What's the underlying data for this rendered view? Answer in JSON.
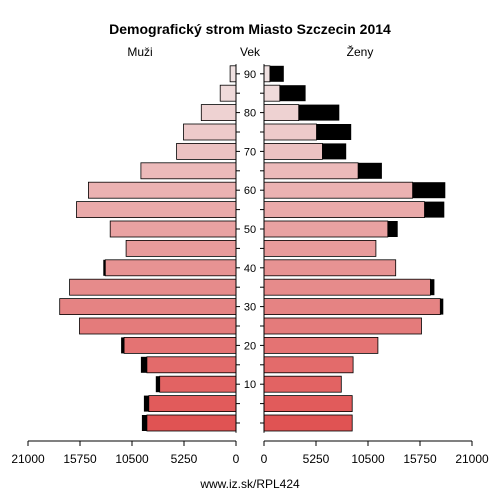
{
  "chart_data": {
    "type": "bar",
    "title": "Demografický strom Miasto Szczecin 2014",
    "left_label": "Muži",
    "center_label": "Vek",
    "right_label": "Ženy",
    "footer": "www.iz.sk/RPL424",
    "age_groups": [
      "0-4",
      "5-9",
      "10-14",
      "15-19",
      "20-24",
      "25-29",
      "30-34",
      "35-39",
      "40-44",
      "45-49",
      "50-54",
      "55-59",
      "60-64",
      "65-69",
      "70-74",
      "75-79",
      "80-84",
      "85-89",
      "90+"
    ],
    "age_tick_labels": [
      "10",
      "20",
      "30",
      "40",
      "50",
      "60",
      "70",
      "80",
      "90"
    ],
    "value_ticks": [
      "21000",
      "15750",
      "10500",
      "5250",
      "0",
      "5250",
      "10500",
      "15750",
      "21000"
    ],
    "xlim": [
      0,
      21000
    ],
    "series": [
      {
        "name": "Muži",
        "values": [
          9000,
          8800,
          7700,
          9000,
          11300,
          15800,
          17800,
          16800,
          13200,
          11100,
          12700,
          16100,
          14900,
          9600,
          6000,
          5300,
          3500,
          1600,
          600
        ],
        "surplus": [
          500,
          500,
          400,
          600,
          300,
          0,
          0,
          0,
          200,
          0,
          0,
          0,
          0,
          0,
          0,
          0,
          0,
          0,
          0
        ]
      },
      {
        "name": "Ženy",
        "values": [
          8900,
          8900,
          7800,
          9000,
          11500,
          15900,
          17800,
          16800,
          13300,
          11300,
          12500,
          16200,
          15000,
          9500,
          5900,
          5300,
          3500,
          1600,
          600
        ],
        "surplus": [
          0,
          0,
          0,
          0,
          0,
          0,
          300,
          400,
          0,
          0,
          1000,
          2000,
          3300,
          2400,
          2400,
          3500,
          4100,
          2600,
          1400
        ]
      }
    ],
    "colors": {
      "young": "#e05353",
      "old": "#f0e2e2",
      "surplus": "#000000",
      "axis": "#000000"
    }
  }
}
